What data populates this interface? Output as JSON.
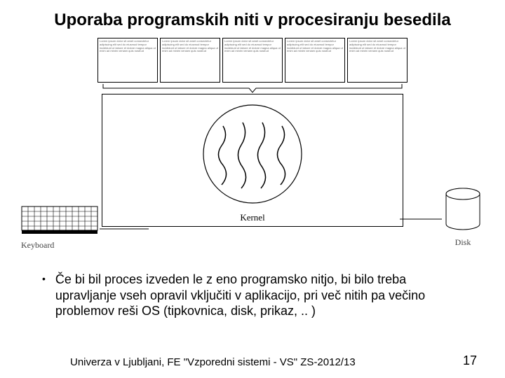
{
  "title": "Uporaba programskih niti v procesiranju besedila",
  "diagram": {
    "box_count": 5,
    "box_filler": "Lorem ipsum dolor sit amet consectetur adipiscing elit sed do eiusmod tempor incididunt ut labore et dolore magna aliqua ut enim ad minim veniam quis nostrud",
    "kernel_label": "Kernel",
    "keyboard_label": "Keyboard",
    "disk_label": "Disk",
    "colors": {
      "stroke": "#000000",
      "bg": "#ffffff",
      "text_muted": "#444444"
    },
    "circle_radius": 70,
    "thread_count": 4
  },
  "bullet": {
    "marker": "•",
    "text": "Če bi bil proces izveden le z eno programsko nitjo, bi bilo treba upravljanje vseh opravil vključiti v aplikacijo, pri več nitih pa večino problemov reši OS (tipkovnica, disk, prikaz, .. )"
  },
  "footer": {
    "left": "Univerza v Ljubljani, FE  \"Vzporedni sistemi - VS\"  ZS-2012/13",
    "page": "17"
  }
}
